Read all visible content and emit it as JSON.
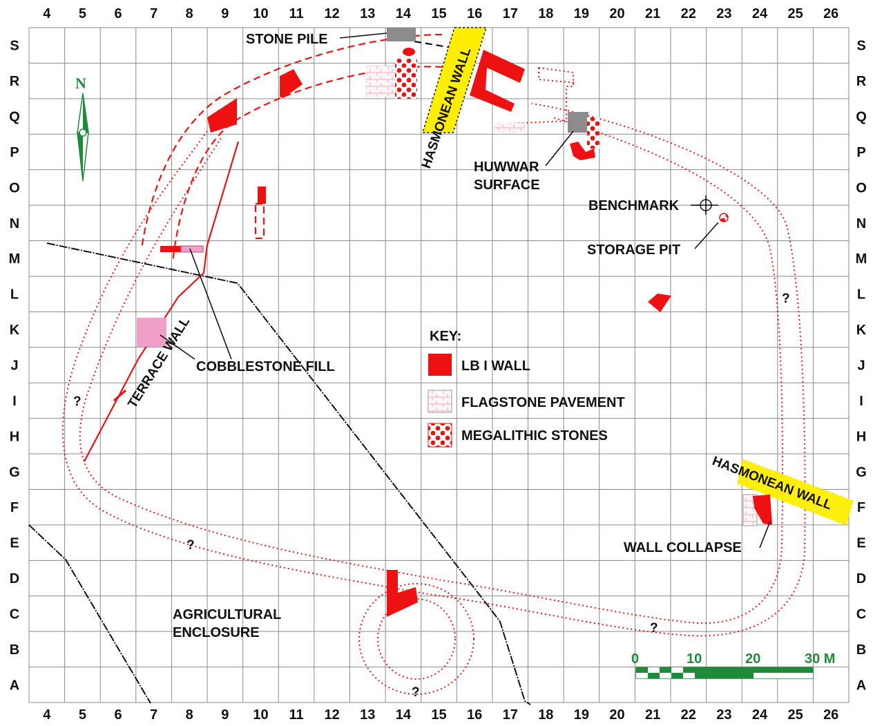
{
  "columns": [
    "4",
    "5",
    "6",
    "7",
    "8",
    "9",
    "10",
    "11",
    "12",
    "13",
    "14",
    "15",
    "16",
    "17",
    "18",
    "19",
    "20",
    "21",
    "22",
    "23",
    "24",
    "25",
    "26"
  ],
  "rows": [
    "S",
    "R",
    "Q",
    "P",
    "O",
    "N",
    "M",
    "L",
    "K",
    "J",
    "I",
    "H",
    "G",
    "F",
    "E",
    "D",
    "C",
    "B",
    "A"
  ],
  "north_label": "N",
  "labels": {
    "stone_pile": "STONE PILE",
    "hasmonean_wall_top": "HASMONEAN WALL",
    "hasmonean_wall_right": "HASMONEAN WALL",
    "huwwar_line1": "HUWWAR",
    "huwwar_line2": "SURFACE",
    "benchmark": "BENCHMARK",
    "storage_pit": "STORAGE PIT",
    "terrace_wall": "TERRACE WALL",
    "cobblestone_fill": "COBBLESTONE FILL",
    "agricultural_line1": "AGRICULTURAL",
    "agricultural_line2": "ENCLOSURE",
    "wall_collapse": "WALL COLLAPSE",
    "question_mark": "?"
  },
  "key": {
    "title": "KEY:",
    "items": [
      {
        "label": "LB I WALL",
        "swatch": "lb-wall"
      },
      {
        "label": "FLAGSTONE PAVEMENT",
        "swatch": "flagstone"
      },
      {
        "label": "MEGALITHIC STONES",
        "swatch": "megalithic"
      }
    ]
  },
  "scale_bar": {
    "ticks": [
      "0",
      "10",
      "20",
      "30 M"
    ]
  },
  "colors": {
    "grid": "#8a8a8a",
    "wall_red": "#ee1111",
    "hasmonean_yellow": "#ffee00",
    "stone_grey": "#8c8c8c",
    "cobble_pink": "#f0a0c8",
    "scale_green": "#1e8a3a"
  }
}
